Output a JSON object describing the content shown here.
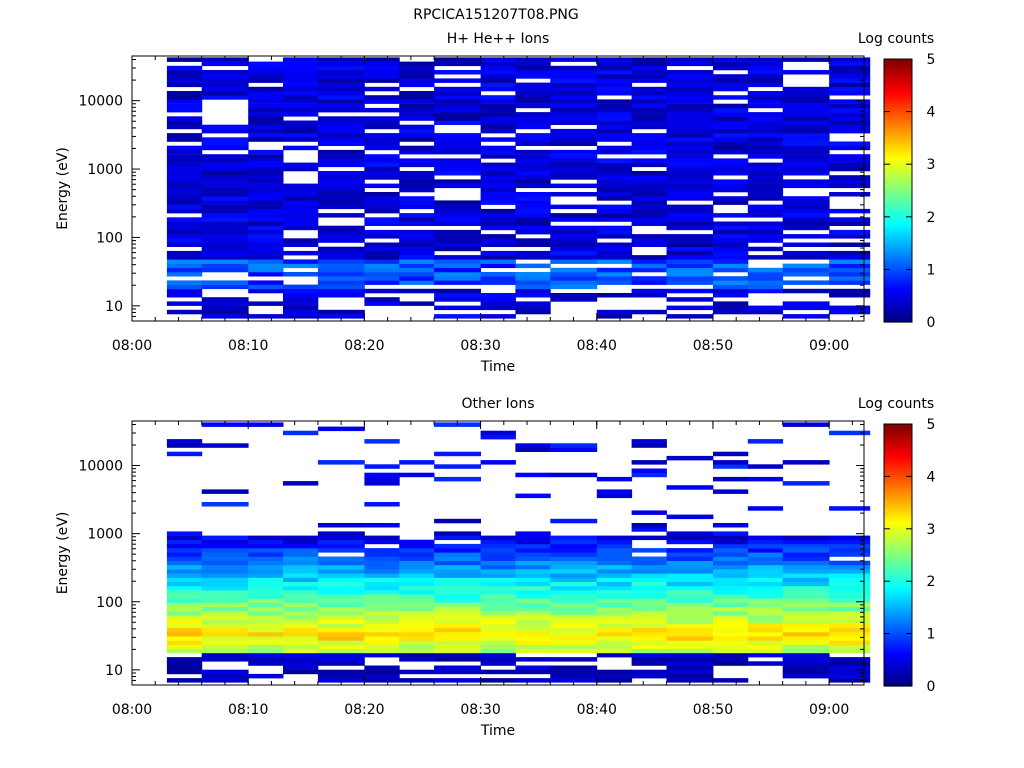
{
  "figure_title": "RPCICA151207T08.PNG",
  "chart_data": [
    {
      "type": "heatmap",
      "title": "H+ He++ Ions",
      "xlabel": "Time",
      "ylabel": "Energy (eV)",
      "colorbar_label": "Log counts",
      "colorbar_ticks": [
        "0",
        "1",
        "2",
        "3",
        "4",
        "5"
      ],
      "colorbar_range": [
        0,
        5
      ],
      "x_range": [
        "08:00",
        "09:03"
      ],
      "x_ticks": [
        "08:00",
        "08:10",
        "08:20",
        "08:30",
        "08:40",
        "08:50",
        "09:00"
      ],
      "y_scale": "log",
      "y_range": [
        6,
        45000
      ],
      "y_ticks": [
        "10",
        "100",
        "1000",
        "10000"
      ],
      "time_bins": [
        "08:03",
        "08:06",
        "08:10",
        "08:13",
        "08:16",
        "08:20",
        "08:23",
        "08:26",
        "08:30",
        "08:33",
        "08:36",
        "08:40",
        "08:43",
        "08:46",
        "08:50",
        "08:53",
        "08:56",
        "09:00"
      ],
      "dominant_level": 0.4,
      "max_level": 1.3,
      "low_energy_gaps": true
    },
    {
      "type": "heatmap",
      "title": "Other Ions",
      "xlabel": "Time",
      "ylabel": "Energy (eV)",
      "colorbar_label": "Log counts",
      "colorbar_ticks": [
        "0",
        "1",
        "2",
        "3",
        "4",
        "5"
      ],
      "colorbar_range": [
        0,
        5
      ],
      "x_range": [
        "08:00",
        "09:03"
      ],
      "x_ticks": [
        "08:00",
        "08:10",
        "08:20",
        "08:30",
        "08:40",
        "08:50",
        "09:00"
      ],
      "y_scale": "log",
      "y_range": [
        6,
        45000
      ],
      "y_ticks": [
        "10",
        "100",
        "1000",
        "10000"
      ],
      "time_bins": [
        "08:03",
        "08:06",
        "08:10",
        "08:13",
        "08:16",
        "08:20",
        "08:23",
        "08:26",
        "08:30",
        "08:33",
        "08:36",
        "08:40",
        "08:43",
        "08:46",
        "08:50",
        "08:53",
        "08:56",
        "09:00"
      ],
      "peak_energy_eV": 32,
      "peak_level": 3.3,
      "band_level_at_100eV": 2.3,
      "band_level_at_500eV": 1.2,
      "sparse_high_energy_above_eV": 1000
    }
  ]
}
